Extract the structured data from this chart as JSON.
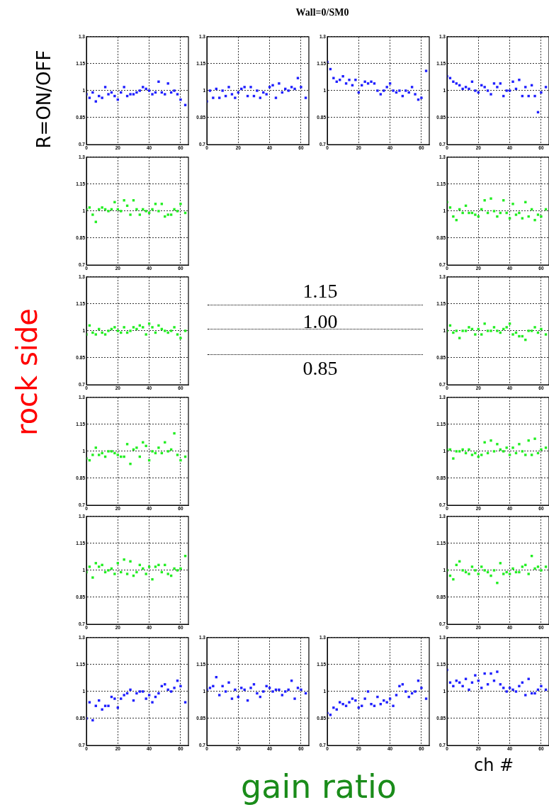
{
  "chart_data": [
    {
      "type": "scatter",
      "ylabel": "R=ON/OFF",
      "annotations": [
        "rock side",
        "gain ratio",
        "1.15",
        "1.00",
        "0.85"
      ],
      "x": [
        0,
        2,
        4,
        6,
        8,
        10,
        12,
        14,
        16,
        18,
        20,
        22,
        24,
        26,
        28,
        30,
        32,
        34,
        36,
        38,
        40,
        42,
        44,
        46,
        48,
        50,
        52,
        54,
        56,
        58,
        60,
        63
      ],
      "series": [
        {
          "color": "#1f1fff",
          "values": [
            0.98,
            0.96,
            0.99,
            0.94,
            0.97,
            0.96,
            1.02,
            0.98,
            0.99,
            0.97,
            0.95,
            0.99,
            1.02,
            0.97,
            0.98,
            0.98,
            0.99,
            1.0,
            1.02,
            1.01,
            1.0,
            0.98,
            0.99,
            1.05,
            0.99,
            0.98,
            1.04,
            0.99,
            1.0,
            0.98,
            0.95,
            0.92
          ]
        }
      ],
      "xlim": [
        0,
        65
      ],
      "ylim": [
        0.7,
        1.3
      ],
      "xticks": [
        0,
        20,
        40,
        60
      ],
      "yticks": [
        0.7,
        0.85,
        1,
        1.15,
        1.3
      ],
      "grid": true,
      "marker": "square"
    },
    {
      "type": "scatter",
      "x": [
        0,
        2,
        4,
        6,
        8,
        10,
        12,
        14,
        16,
        18,
        20,
        22,
        24,
        26,
        28,
        30,
        32,
        34,
        36,
        38,
        40,
        42,
        44,
        46,
        48,
        50,
        52,
        54,
        56,
        58,
        60,
        63
      ],
      "series": [
        {
          "color": "#1f1fff",
          "values": [
            0.94,
            1.0,
            0.96,
            1.01,
            0.96,
            1.0,
            0.97,
            1.02,
            0.98,
            0.96,
            0.99,
            1.01,
            1.02,
            0.97,
            1.02,
            0.97,
            1.0,
            0.96,
            0.99,
            0.98,
            1.02,
            1.03,
            0.96,
            1.04,
            0.99,
            1.01,
            1.0,
            1.02,
            1.01,
            1.07,
            1.02,
            0.96
          ]
        }
      ],
      "xlim": [
        0,
        65
      ],
      "ylim": [
        0.7,
        1.3
      ],
      "xticks": [
        0,
        20,
        40,
        60
      ],
      "yticks": [
        0.7,
        0.85,
        1,
        1.15,
        1.3
      ],
      "grid": true,
      "marker": "square"
    },
    {
      "type": "scatter",
      "title": "Wall=0/SM0",
      "x": [
        0,
        2,
        4,
        6,
        8,
        10,
        12,
        14,
        16,
        18,
        20,
        22,
        24,
        26,
        28,
        30,
        32,
        34,
        36,
        38,
        40,
        42,
        44,
        46,
        48,
        50,
        52,
        54,
        56,
        58,
        60,
        63
      ],
      "series": [
        {
          "color": "#1f1fff",
          "values": [
            1.16,
            1.12,
            1.07,
            1.05,
            1.06,
            1.08,
            1.04,
            1.06,
            1.03,
            1.06,
            0.99,
            1.03,
            1.05,
            1.04,
            1.05,
            1.04,
            1.0,
            0.98,
            1.0,
            1.02,
            1.04,
            1.0,
            0.99,
            1.0,
            0.97,
            1.0,
            0.99,
            1.02,
            0.98,
            0.95,
            0.96,
            1.11
          ]
        }
      ],
      "xlim": [
        0,
        65
      ],
      "ylim": [
        0.7,
        1.3
      ],
      "xticks": [
        0,
        20,
        40,
        60
      ],
      "yticks": [
        0.7,
        0.85,
        1,
        1.15,
        1.3
      ],
      "grid": true,
      "marker": "square"
    },
    {
      "type": "scatter",
      "x": [
        0,
        2,
        4,
        6,
        8,
        10,
        12,
        14,
        16,
        18,
        20,
        22,
        24,
        26,
        28,
        30,
        32,
        34,
        36,
        38,
        40,
        42,
        44,
        46,
        48,
        50,
        52,
        54,
        56,
        58,
        60,
        63
      ],
      "series": [
        {
          "color": "#1f1fff",
          "values": [
            1.08,
            1.07,
            1.05,
            1.04,
            1.03,
            1.01,
            1.02,
            1.01,
            1.05,
            1.0,
            0.99,
            1.03,
            1.02,
            1.0,
            0.98,
            1.04,
            1.02,
            1.04,
            0.97,
            1.0,
            1.0,
            1.05,
            1.01,
            1.06,
            0.97,
            1.02,
            0.97,
            1.03,
            0.97,
            0.88,
            0.99,
            1.02
          ]
        }
      ],
      "xlim": [
        0,
        65
      ],
      "ylim": [
        0.7,
        1.3
      ],
      "xticks": [
        0,
        20,
        40,
        60
      ],
      "yticks": [
        0.7,
        0.85,
        1,
        1.15,
        1.3
      ],
      "grid": true,
      "marker": "square"
    },
    {
      "type": "scatter",
      "x": [
        0,
        2,
        4,
        6,
        8,
        10,
        12,
        14,
        16,
        18,
        20,
        22,
        24,
        26,
        28,
        30,
        32,
        34,
        36,
        38,
        40,
        42,
        44,
        46,
        48,
        50,
        52,
        54,
        56,
        58,
        60,
        63
      ],
      "series": [
        {
          "color": "#22ee22",
          "values": [
            1.01,
            1.02,
            0.98,
            0.94,
            1.01,
            1.02,
            1.01,
            1.0,
            1.01,
            1.05,
            1.01,
            1.0,
            1.06,
            1.03,
            0.98,
            1.06,
            1.01,
            0.98,
            1.01,
            1.0,
            0.99,
            1.01,
            1.04,
            1.0,
            1.04,
            0.97,
            0.98,
            0.98,
            1.01,
            1.0,
            1.04,
            0.99
          ]
        }
      ],
      "xlim": [
        0,
        65
      ],
      "ylim": [
        0.7,
        1.3
      ],
      "xticks": [
        0,
        20,
        40,
        60
      ],
      "yticks": [
        0.7,
        0.85,
        1,
        1.15,
        1.3
      ],
      "grid": true,
      "marker": "square"
    },
    {
      "type": "scatter",
      "x": [
        0,
        2,
        4,
        6,
        8,
        10,
        12,
        14,
        16,
        18,
        20,
        22,
        24,
        26,
        28,
        30,
        32,
        34,
        36,
        38,
        40,
        42,
        44,
        46,
        48,
        50,
        52,
        54,
        56,
        58,
        60,
        63
      ],
      "series": [
        {
          "color": "#22ee22",
          "values": [
            1.05,
            1.02,
            0.97,
            0.95,
            1.01,
            0.99,
            1.03,
            0.99,
            0.99,
            0.98,
            0.97,
            1.01,
            1.06,
            0.99,
            1.07,
            1.0,
            0.97,
            0.99,
            1.06,
            0.99,
            0.96,
            1.04,
            0.98,
            0.99,
            0.96,
            1.05,
            0.97,
            1.01,
            0.95,
            0.98,
            0.97,
            1.01
          ]
        }
      ],
      "xlim": [
        0,
        65
      ],
      "ylim": [
        0.7,
        1.3
      ],
      "xticks": [
        0,
        20,
        40,
        60
      ],
      "yticks": [
        0.7,
        0.85,
        1,
        1.15,
        1.3
      ],
      "grid": true,
      "marker": "square"
    },
    {
      "type": "scatter",
      "x": [
        0,
        2,
        4,
        6,
        8,
        10,
        12,
        14,
        16,
        18,
        20,
        22,
        24,
        26,
        28,
        30,
        32,
        34,
        36,
        38,
        40,
        42,
        44,
        46,
        48,
        50,
        52,
        54,
        56,
        58,
        60,
        63
      ],
      "series": [
        {
          "color": "#22ee22",
          "values": [
            0.98,
            1.03,
            0.99,
            0.98,
            1.01,
            0.99,
            0.98,
            1.0,
            1.01,
            1.02,
            1.0,
            0.99,
            1.02,
            0.99,
            1.0,
            1.02,
            1.01,
            1.03,
            1.02,
            0.98,
            1.04,
            1.02,
            0.99,
            1.03,
            1.01,
            1.0,
            0.99,
            1.0,
            1.02,
            0.98,
            0.96,
            1.0
          ]
        }
      ],
      "xlim": [
        0,
        65
      ],
      "ylim": [
        0.7,
        1.3
      ],
      "xticks": [
        0,
        20,
        40,
        60
      ],
      "yticks": [
        0.7,
        0.85,
        1,
        1.15,
        1.3
      ],
      "grid": true,
      "marker": "square"
    },
    {
      "type": "scatter",
      "x": [
        0,
        2,
        4,
        6,
        8,
        10,
        12,
        14,
        16,
        18,
        20,
        22,
        24,
        26,
        28,
        30,
        32,
        34,
        36,
        38,
        40,
        42,
        44,
        46,
        48,
        50,
        52,
        54,
        56,
        58,
        60,
        63
      ],
      "series": [
        {
          "color": "#22ee22",
          "values": [
            1.0,
            1.03,
            0.99,
            1.0,
            0.96,
            1.0,
            1.0,
            1.02,
            1.01,
            0.98,
            1.01,
            0.98,
            1.04,
            1.0,
            1.0,
            1.02,
            1.0,
            0.99,
            1.01,
            1.02,
            1.04,
            0.98,
            0.99,
            0.97,
            0.97,
            0.95,
            1.0,
            1.0,
            1.02,
            0.99,
            1.01,
            0.98
          ]
        }
      ],
      "xlim": [
        0,
        65
      ],
      "ylim": [
        0.7,
        1.3
      ],
      "xticks": [
        0,
        20,
        40,
        60
      ],
      "yticks": [
        0.7,
        0.85,
        1,
        1.15,
        1.3
      ],
      "grid": true,
      "marker": "square"
    },
    {
      "type": "scatter",
      "x": [
        0,
        2,
        4,
        6,
        8,
        10,
        12,
        14,
        16,
        18,
        20,
        22,
        24,
        26,
        28,
        30,
        32,
        34,
        36,
        38,
        40,
        42,
        44,
        46,
        48,
        50,
        52,
        54,
        56,
        58,
        60,
        63
      ],
      "series": [
        {
          "color": "#22ee22",
          "values": [
            0.96,
            0.95,
            0.98,
            1.02,
            0.98,
            0.99,
            0.97,
            1.0,
            1.0,
            0.99,
            0.98,
            0.97,
            0.97,
            1.04,
            0.93,
            1.01,
            1.02,
            0.97,
            1.05,
            1.03,
            0.95,
            1.0,
            0.99,
            1.02,
            0.99,
            1.05,
            1.0,
            1.01,
            1.1,
            0.98,
            0.95,
            0.97
          ]
        }
      ],
      "xlim": [
        0,
        65
      ],
      "ylim": [
        0.7,
        1.3
      ],
      "xticks": [
        0,
        20,
        40,
        60
      ],
      "yticks": [
        0.7,
        0.85,
        1,
        1.15,
        1.3
      ],
      "grid": true,
      "marker": "square"
    },
    {
      "type": "scatter",
      "x": [
        0,
        2,
        4,
        6,
        8,
        10,
        12,
        14,
        16,
        18,
        20,
        22,
        24,
        26,
        28,
        30,
        32,
        34,
        36,
        38,
        40,
        42,
        44,
        46,
        48,
        50,
        52,
        54,
        56,
        58,
        60,
        63
      ],
      "series": [
        {
          "color": "#22ee22",
          "values": [
            1.01,
            1.01,
            0.96,
            1.0,
            1.0,
            1.01,
            0.99,
            1.01,
            0.98,
            0.99,
            0.97,
            0.98,
            1.05,
            0.99,
            1.06,
            1.0,
            1.04,
            1.01,
            1.0,
            1.02,
            0.98,
            1.02,
            0.99,
            1.04,
            1.0,
            0.98,
            1.06,
            0.98,
            1.07,
            0.99,
            1.01,
            1.02
          ]
        }
      ],
      "xlim": [
        0,
        65
      ],
      "ylim": [
        0.7,
        1.3
      ],
      "xticks": [
        0,
        20,
        40,
        60
      ],
      "yticks": [
        0.7,
        0.85,
        1,
        1.15,
        1.3
      ],
      "grid": true,
      "marker": "square"
    },
    {
      "type": "scatter",
      "x": [
        0,
        2,
        4,
        6,
        8,
        10,
        12,
        14,
        16,
        18,
        20,
        22,
        24,
        26,
        28,
        30,
        32,
        34,
        36,
        38,
        40,
        42,
        44,
        46,
        48,
        50,
        52,
        54,
        56,
        58,
        60,
        63
      ],
      "series": [
        {
          "color": "#22ee22",
          "values": [
            0.99,
            1.02,
            0.96,
            1.04,
            1.02,
            1.03,
            0.99,
            1.0,
            1.01,
            0.98,
            1.04,
            0.99,
            1.06,
            0.98,
            1.05,
            0.97,
            0.99,
            1.03,
            1.01,
            0.98,
            1.02,
            0.95,
            1.02,
            1.03,
            0.99,
            1.03,
            0.98,
            0.97,
            1.01,
            1.0,
            1.01,
            1.08
          ]
        }
      ],
      "xlim": [
        0,
        65
      ],
      "ylim": [
        0.7,
        1.3
      ],
      "xticks": [
        0,
        20,
        40,
        60
      ],
      "yticks": [
        0.7,
        0.85,
        1,
        1.15,
        1.3
      ],
      "grid": true,
      "marker": "square"
    },
    {
      "type": "scatter",
      "x": [
        0,
        2,
        4,
        6,
        8,
        10,
        12,
        14,
        16,
        18,
        20,
        22,
        24,
        26,
        28,
        30,
        32,
        34,
        36,
        38,
        40,
        42,
        44,
        46,
        48,
        50,
        52,
        54,
        56,
        58,
        60,
        63
      ],
      "series": [
        {
          "color": "#22ee22",
          "values": [
            1.0,
            0.97,
            0.95,
            1.03,
            1.05,
            1.0,
            0.99,
            0.98,
            1.02,
            1.0,
            0.98,
            1.02,
            1.0,
            0.99,
            0.97,
            1.0,
            0.93,
            1.04,
            0.98,
            0.99,
            0.98,
            1.01,
            0.99,
            0.99,
            1.02,
            1.03,
            0.98,
            1.08,
            1.01,
            1.02,
            1.0,
            1.02
          ]
        }
      ],
      "xlim": [
        0,
        65
      ],
      "ylim": [
        0.7,
        1.3
      ],
      "xticks": [
        0,
        20,
        40,
        60
      ],
      "yticks": [
        0.7,
        0.85,
        1,
        1.15,
        1.3
      ],
      "grid": true,
      "marker": "square"
    },
    {
      "type": "scatter",
      "x": [
        0,
        2,
        4,
        6,
        8,
        10,
        12,
        14,
        16,
        18,
        20,
        22,
        24,
        26,
        28,
        30,
        32,
        34,
        36,
        38,
        40,
        42,
        44,
        46,
        48,
        50,
        52,
        54,
        56,
        58,
        60,
        63
      ],
      "series": [
        {
          "color": "#1f1fff",
          "values": [
            0.85,
            0.94,
            0.84,
            0.92,
            0.95,
            0.9,
            0.92,
            0.92,
            0.97,
            0.96,
            0.91,
            0.96,
            0.98,
            0.99,
            1.01,
            0.95,
            0.99,
            1.0,
            1.0,
            0.96,
            0.98,
            0.94,
            0.97,
            0.99,
            1.03,
            1.04,
            1.01,
            1.0,
            1.02,
            1.06,
            1.03,
            0.94
          ]
        }
      ],
      "xlim": [
        0,
        65
      ],
      "ylim": [
        0.7,
        1.3
      ],
      "xticks": [
        0,
        20,
        40,
        60
      ],
      "yticks": [
        0.7,
        0.85,
        1,
        1.15,
        1.3
      ],
      "grid": true,
      "marker": "square"
    },
    {
      "type": "scatter",
      "x": [
        0,
        2,
        4,
        6,
        8,
        10,
        12,
        14,
        16,
        18,
        20,
        22,
        24,
        26,
        28,
        30,
        32,
        34,
        36,
        38,
        40,
        42,
        44,
        46,
        48,
        50,
        52,
        54,
        56,
        58,
        60,
        63
      ],
      "series": [
        {
          "color": "#1f1fff",
          "values": [
            1.01,
            1.02,
            1.03,
            1.08,
            0.98,
            1.03,
            1.0,
            1.05,
            0.96,
            1.01,
            0.97,
            1.02,
            1.01,
            0.95,
            1.02,
            1.04,
            0.99,
            0.97,
            1.0,
            1.03,
            1.02,
            1.0,
            1.01,
            1.01,
            0.98,
            1.0,
            1.01,
            1.06,
            0.96,
            1.02,
            1.01,
            0.99
          ]
        }
      ],
      "xlim": [
        0,
        65
      ],
      "ylim": [
        0.7,
        1.3
      ],
      "xticks": [
        0,
        20,
        40,
        60
      ],
      "yticks": [
        0.7,
        0.85,
        1,
        1.15,
        1.3
      ],
      "grid": true,
      "marker": "square"
    },
    {
      "type": "scatter",
      "x": [
        0,
        2,
        4,
        6,
        8,
        10,
        12,
        14,
        16,
        18,
        20,
        22,
        24,
        26,
        28,
        30,
        32,
        34,
        36,
        38,
        40,
        42,
        44,
        46,
        48,
        50,
        52,
        54,
        56,
        58,
        60,
        63
      ],
      "series": [
        {
          "color": "#1f1fff",
          "values": [
            0.88,
            0.87,
            0.91,
            0.9,
            0.94,
            0.93,
            0.92,
            0.94,
            0.96,
            0.95,
            0.91,
            0.92,
            0.96,
            1.0,
            0.93,
            0.92,
            0.97,
            0.93,
            0.95,
            0.94,
            0.96,
            0.92,
            0.98,
            1.03,
            1.04,
            1.0,
            0.97,
            0.99,
            1.0,
            1.06,
            1.02,
            0.96
          ]
        }
      ],
      "xlim": [
        0,
        65
      ],
      "ylim": [
        0.7,
        1.3
      ],
      "xticks": [
        0,
        20,
        40,
        60
      ],
      "yticks": [
        0.7,
        0.85,
        1,
        1.15,
        1.3
      ],
      "grid": true,
      "marker": "square"
    },
    {
      "type": "scatter",
      "xlabel": "ch #",
      "x": [
        0,
        2,
        4,
        6,
        8,
        10,
        12,
        14,
        16,
        18,
        20,
        22,
        24,
        26,
        28,
        30,
        32,
        34,
        36,
        38,
        40,
        42,
        44,
        46,
        48,
        50,
        52,
        54,
        56,
        58,
        60,
        63
      ],
      "series": [
        {
          "color": "#1f1fff",
          "values": [
            1.12,
            1.05,
            1.03,
            1.06,
            1.05,
            1.03,
            1.07,
            1.01,
            1.05,
            1.09,
            1.06,
            1.02,
            1.1,
            1.04,
            1.1,
            1.06,
            1.11,
            1.04,
            1.02,
            1.0,
            1.02,
            1.01,
            1.0,
            1.03,
            1.05,
            0.98,
            1.07,
            0.99,
            0.99,
            1.01,
            1.03,
            1.01
          ]
        }
      ],
      "xlim": [
        0,
        65
      ],
      "ylim": [
        0.7,
        1.3
      ],
      "xticks": [
        0,
        20,
        40,
        60
      ],
      "yticks": [
        0.7,
        0.85,
        1,
        1.15,
        1.3
      ],
      "grid": true,
      "marker": "square"
    }
  ]
}
